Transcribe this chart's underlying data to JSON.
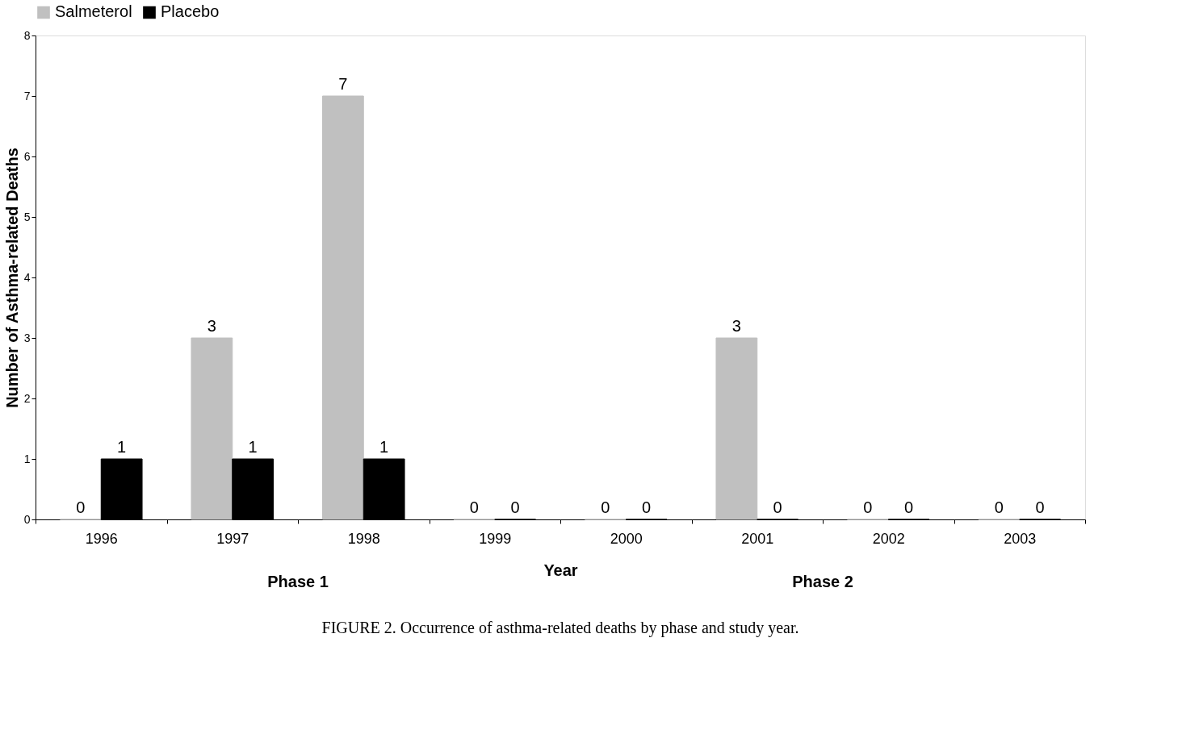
{
  "chart_data": {
    "type": "bar",
    "xlabel": "Year",
    "ylabel": "Number of Asthma-related Deaths",
    "categories": [
      "1996",
      "1997",
      "1998",
      "1999",
      "2000",
      "2001",
      "2002",
      "2003"
    ],
    "series": [
      {
        "name": "Salmeterol",
        "color": "#c0c0c0",
        "values": [
          0,
          3,
          7,
          0,
          0,
          3,
          0,
          0
        ]
      },
      {
        "name": "Placebo",
        "color": "#000000",
        "values": [
          1,
          1,
          1,
          0,
          0,
          0,
          0,
          0
        ]
      }
    ],
    "ylim": [
      0,
      8
    ],
    "yticks": [
      0,
      1,
      2,
      3,
      4,
      5,
      6,
      7,
      8
    ],
    "grid": false,
    "legend": "top",
    "data_labels": true,
    "annotations": [
      "Phase 1",
      "Phase 2",
      "FIGURE 2. Occurrence of asthma-related deaths by phase and study year."
    ]
  }
}
